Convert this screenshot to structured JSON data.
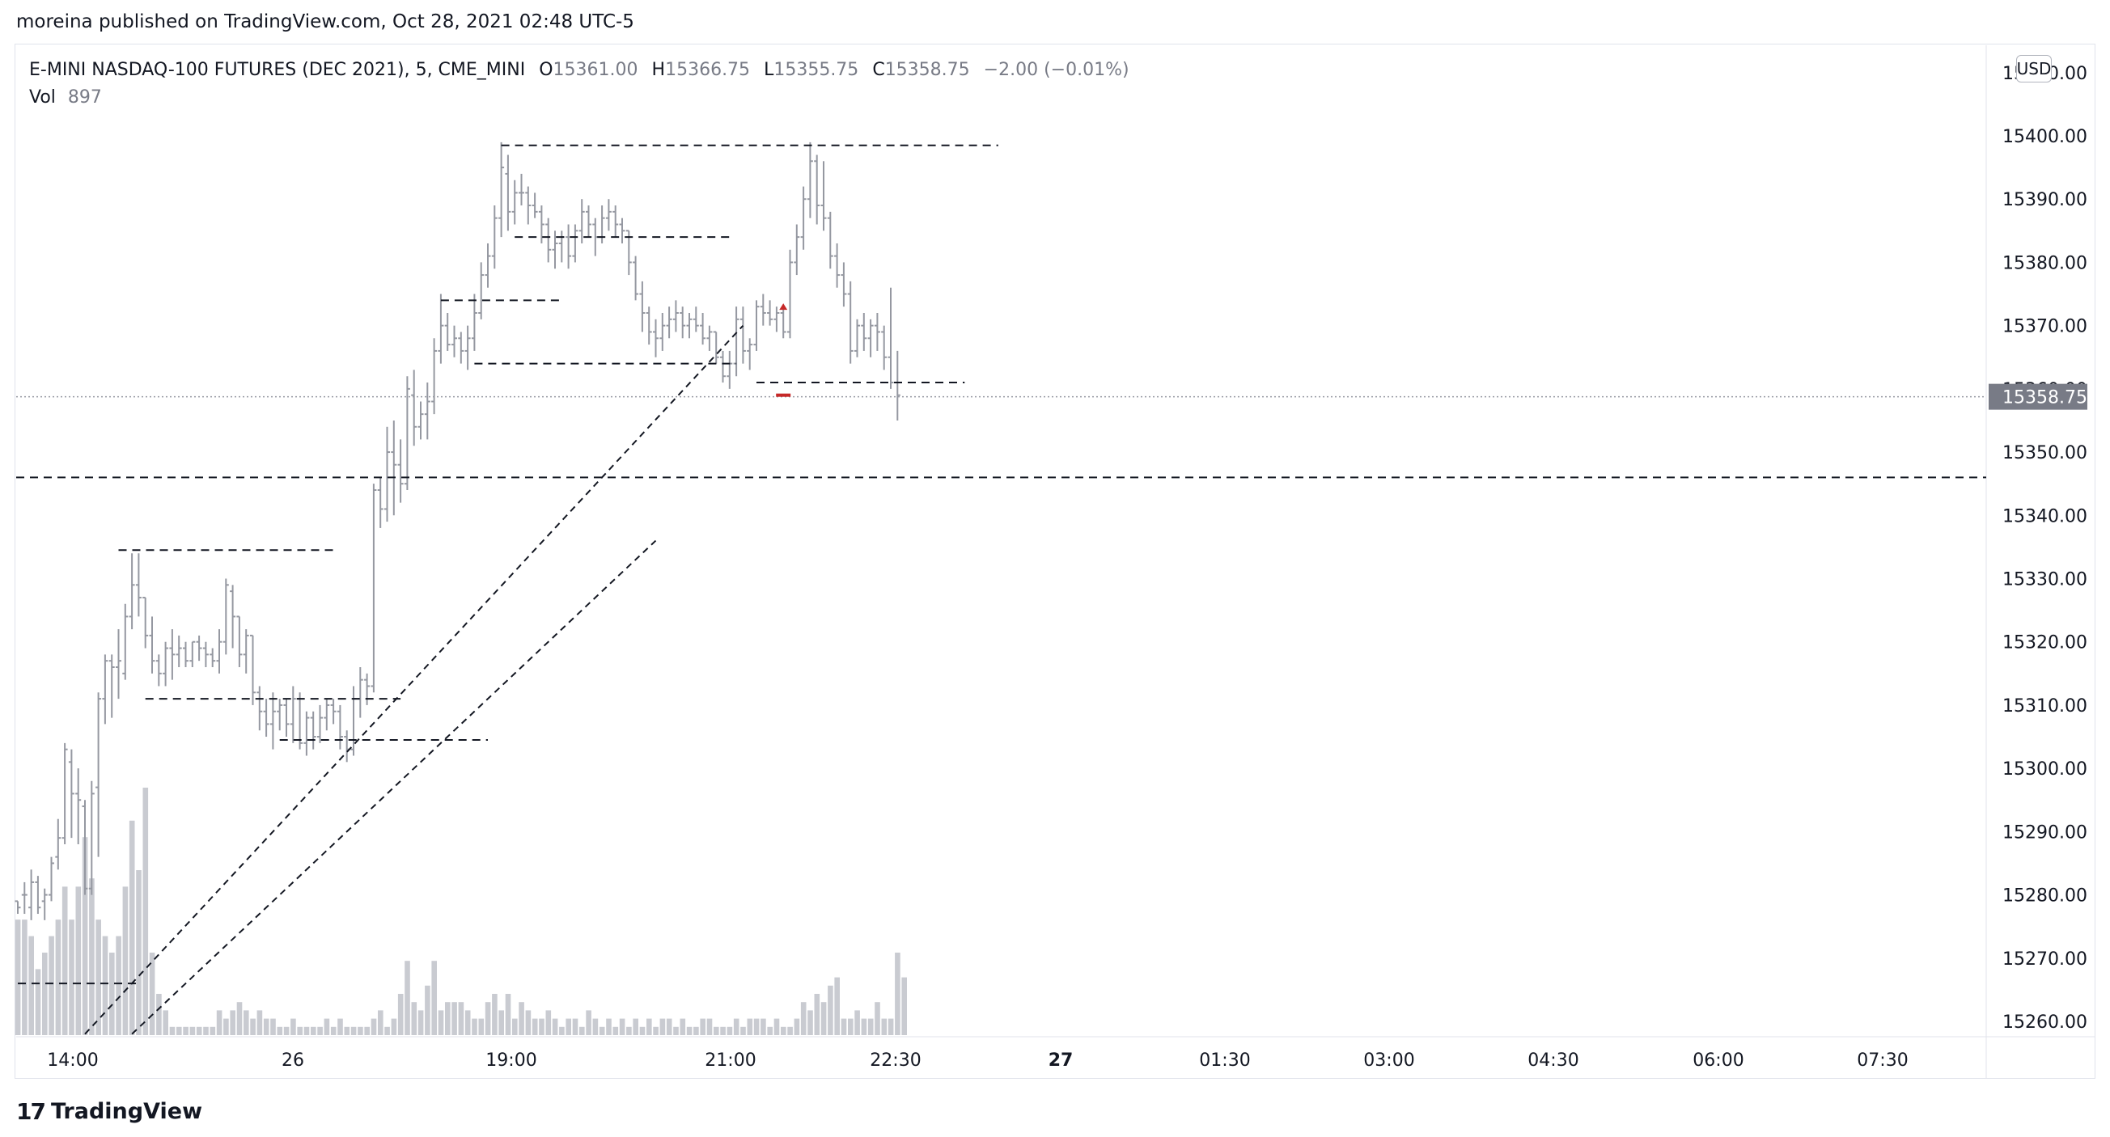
{
  "header": {
    "published_by": "moreina published on TradingView.com, Oct 28, 2021 02:48 UTC-5"
  },
  "legend": {
    "symbol": "E-MINI NASDAQ-100 FUTURES (DEC 2021), 5, CME_MINI",
    "o_label": "O",
    "o_value": "15361.00",
    "h_label": "H",
    "h_value": "15366.75",
    "l_label": "L",
    "l_value": "15355.75",
    "c_label": "C",
    "c_value": "15358.75",
    "change": "−2.00 (−0.01%)",
    "vol_label": "Vol",
    "vol_value": "897"
  },
  "currency": "USD",
  "footer": {
    "brand": "TradingView",
    "logo_glyph": "17"
  },
  "colors": {
    "bar": "#9598a1",
    "volume": "#c9cbd1",
    "line": "#131722",
    "last_price_bg": "#787b86",
    "last_price_text": "#ffffff",
    "marker_red": "#c62828"
  },
  "chart_data": {
    "type": "ohlc",
    "title": "E-MINI NASDAQ-100 FUTURES (DEC 2021), 5, CME_MINI",
    "timeframe": "5",
    "y_ticks": [
      "15260.00",
      "15270.00",
      "15280.00",
      "15290.00",
      "15300.00",
      "15310.00",
      "15320.00",
      "15330.00",
      "15340.00",
      "15350.00",
      "15360.00",
      "15370.00",
      "15380.00",
      "15390.00",
      "15400.00",
      "15410.00"
    ],
    "ylim": [
      15258,
      15414
    ],
    "x_ticks": [
      "14:00",
      "26",
      "19:00",
      "21:00",
      "22:30",
      "27",
      "01:30",
      "03:00",
      "04:30",
      "06:00",
      "07:30"
    ],
    "x_tick_bold": [
      false,
      false,
      false,
      false,
      false,
      true,
      false,
      false,
      false,
      false,
      false
    ],
    "last_price": "15358.75",
    "last_price_value": 15358.75,
    "ohlc": [
      [
        15279,
        15279,
        15277,
        15278
      ],
      [
        15280,
        15282,
        15277,
        15280
      ],
      [
        15278,
        15284,
        15276,
        15282
      ],
      [
        15282,
        15283,
        15277,
        15278
      ],
      [
        15279,
        15281,
        15276,
        15280
      ],
      [
        15280,
        15286,
        15279,
        15285
      ],
      [
        15286,
        15292,
        15284,
        15289
      ],
      [
        15289,
        15304,
        15288,
        15303
      ],
      [
        15301,
        15303,
        15289,
        15296
      ],
      [
        15296,
        15300,
        15288,
        15295
      ],
      [
        15294,
        15295,
        15280,
        15281
      ],
      [
        15281,
        15298,
        15280,
        15296
      ],
      [
        15297,
        15312,
        15286,
        15311
      ],
      [
        15311,
        15318,
        15307,
        15317
      ],
      [
        15317,
        15318,
        15308,
        15316
      ],
      [
        15316,
        15322,
        15311,
        15317
      ],
      [
        15315,
        15326,
        15314,
        15324
      ],
      [
        15324,
        15334,
        15322,
        15329
      ],
      [
        15329,
        15334,
        15324,
        15327
      ],
      [
        15327,
        15327,
        15319,
        15321
      ],
      [
        15321,
        15324,
        15315,
        15317
      ],
      [
        15317,
        15318,
        15313,
        15315
      ],
      [
        15315,
        15320,
        15313,
        15319
      ],
      [
        15319,
        15322,
        15314,
        15318
      ],
      [
        15318,
        15321,
        15316,
        15319
      ],
      [
        15319,
        15320,
        15316,
        15317
      ],
      [
        15317,
        15320,
        15316,
        15320
      ],
      [
        15320,
        15321,
        15317,
        15319
      ],
      [
        15319,
        15320,
        15316,
        15318
      ],
      [
        15318,
        15319,
        15316,
        15317
      ],
      [
        15317,
        15322,
        15315,
        15320
      ],
      [
        15320,
        15330,
        15318,
        15329
      ],
      [
        15328,
        15329,
        15319,
        15324
      ],
      [
        15324,
        15324,
        15316,
        15318
      ],
      [
        15318,
        15322,
        15315,
        15321
      ],
      [
        15321,
        15321,
        15310,
        15312
      ],
      [
        15312,
        15313,
        15306,
        15309
      ],
      [
        15309,
        15311,
        15305,
        15307
      ],
      [
        15307,
        15312,
        15303,
        15309
      ],
      [
        15309,
        15311,
        15306,
        15310
      ],
      [
        15310,
        15311,
        15305,
        15307
      ],
      [
        15307,
        15313,
        15304,
        15311
      ],
      [
        15311,
        15312,
        15303,
        15304
      ],
      [
        15304,
        15309,
        15302,
        15308
      ],
      [
        15308,
        15309,
        15303,
        15305
      ],
      [
        15305,
        15310,
        15304,
        15308
      ],
      [
        15308,
        15311,
        15306,
        15310
      ],
      [
        15310,
        15311,
        15307,
        15309
      ],
      [
        15309,
        15310,
        15303,
        15305
      ],
      [
        15305,
        15306,
        15301,
        15303
      ],
      [
        15303,
        15313,
        15302,
        15311
      ],
      [
        15311,
        15316,
        15308,
        15314
      ],
      [
        15314,
        15315,
        15310,
        15313
      ],
      [
        15313,
        15345,
        15312,
        15344
      ],
      [
        15344,
        15346,
        15338,
        15341
      ],
      [
        15341,
        15354,
        15339,
        15350
      ],
      [
        15350,
        15355,
        15340,
        15348
      ],
      [
        15348,
        15352,
        15342,
        15345
      ],
      [
        15345,
        15362,
        15344,
        15360
      ],
      [
        15359,
        15363,
        15351,
        15354
      ],
      [
        15354,
        15358,
        15352,
        15356
      ],
      [
        15356,
        15361,
        15352,
        15358
      ],
      [
        15358,
        15368,
        15356,
        15366
      ],
      [
        15366,
        15375,
        15364,
        15370
      ],
      [
        15370,
        15372,
        15366,
        15367
      ],
      [
        15367,
        15370,
        15365,
        15368
      ],
      [
        15368,
        15369,
        15364,
        15366
      ],
      [
        15366,
        15370,
        15363,
        15368
      ],
      [
        15368,
        15375,
        15366,
        15372
      ],
      [
        15372,
        15380,
        15371,
        15378
      ],
      [
        15378,
        15383,
        15376,
        15381
      ],
      [
        15381,
        15389,
        15379,
        15387
      ],
      [
        15387,
        15399,
        15384,
        15395
      ],
      [
        15394,
        15397,
        15385,
        15388
      ],
      [
        15388,
        15393,
        15386,
        15391
      ],
      [
        15391,
        15394,
        15389,
        15391
      ],
      [
        15391,
        15392,
        15386,
        15389
      ],
      [
        15389,
        15391,
        15387,
        15388
      ],
      [
        15388,
        15389,
        15383,
        15386
      ],
      [
        15386,
        15387,
        15380,
        15382
      ],
      [
        15382,
        15385,
        15379,
        15383
      ],
      [
        15383,
        15385,
        15380,
        15384
      ],
      [
        15384,
        15386,
        15379,
        15381
      ],
      [
        15381,
        15386,
        15380,
        15385
      ],
      [
        15385,
        15390,
        15383,
        15388
      ],
      [
        15388,
        15389,
        15384,
        15386
      ],
      [
        15386,
        15387,
        15381,
        15384
      ],
      [
        15384,
        15389,
        15383,
        15387
      ],
      [
        15387,
        15390,
        15385,
        15388
      ],
      [
        15388,
        15389,
        15384,
        15386
      ],
      [
        15386,
        15387,
        15383,
        15385
      ],
      [
        15385,
        15385,
        15378,
        15380
      ],
      [
        15380,
        15381,
        15374,
        15375
      ],
      [
        15375,
        15377,
        15369,
        15372
      ],
      [
        15372,
        15373,
        15367,
        15369
      ],
      [
        15369,
        15371,
        15365,
        15368
      ],
      [
        15368,
        15372,
        15366,
        15370
      ],
      [
        15370,
        15373,
        15368,
        15371
      ],
      [
        15371,
        15374,
        15369,
        15372
      ],
      [
        15372,
        15373,
        15368,
        15370
      ],
      [
        15370,
        15372,
        15368,
        15371
      ],
      [
        15371,
        15373,
        15369,
        15370
      ],
      [
        15370,
        15372,
        15367,
        15368
      ],
      [
        15368,
        15370,
        15366,
        15369
      ],
      [
        15369,
        15369,
        15364,
        15365
      ],
      [
        15365,
        15366,
        15361,
        15362
      ],
      [
        15362,
        15366,
        15360,
        15364
      ],
      [
        15364,
        15373,
        15362,
        15371
      ],
      [
        15371,
        15373,
        15364,
        15366
      ],
      [
        15366,
        15368,
        15363,
        15367
      ],
      [
        15367,
        15374,
        15366,
        15373
      ],
      [
        15373,
        15375,
        15370,
        15372
      ],
      [
        15372,
        15374,
        15370,
        15371
      ],
      [
        15371,
        15373,
        15369,
        15372
      ],
      [
        15372,
        15373,
        15368,
        15369
      ],
      [
        15369,
        15382,
        15368,
        15380
      ],
      [
        15380,
        15386,
        15378,
        15384
      ],
      [
        15384,
        15392,
        15382,
        15390
      ],
      [
        15390,
        15399,
        15387,
        15396
      ],
      [
        15396,
        15397,
        15386,
        15389
      ],
      [
        15389,
        15396,
        15385,
        15387
      ],
      [
        15387,
        15388,
        15379,
        15381
      ],
      [
        15381,
        15383,
        15376,
        15378
      ],
      [
        15378,
        15380,
        15373,
        15375
      ],
      [
        15375,
        15377,
        15364,
        15366
      ],
      [
        15366,
        15371,
        15365,
        15370
      ],
      [
        15370,
        15372,
        15366,
        15368
      ],
      [
        15368,
        15371,
        15365,
        15370
      ],
      [
        15370,
        15372,
        15366,
        15369
      ],
      [
        15369,
        15370,
        15363,
        15365
      ],
      [
        15365,
        15376,
        15360,
        15361
      ],
      [
        15361,
        15366,
        15355,
        15359
      ]
    ],
    "volume": [
      14,
      14,
      12,
      8,
      10,
      12,
      14,
      18,
      14,
      18,
      24,
      19,
      14,
      12,
      10,
      12,
      18,
      26,
      20,
      30,
      10,
      5,
      3,
      1,
      1,
      1,
      1,
      1,
      1,
      1,
      3,
      2,
      3,
      4,
      3,
      2,
      3,
      2,
      2,
      1,
      1,
      2,
      1,
      1,
      1,
      1,
      2,
      1,
      2,
      1,
      1,
      1,
      1,
      2,
      3,
      1,
      2,
      5,
      9,
      4,
      3,
      6,
      9,
      3,
      4,
      4,
      4,
      3,
      2,
      2,
      4,
      5,
      3,
      5,
      2,
      4,
      3,
      2,
      2,
      3,
      2,
      1,
      2,
      2,
      1,
      3,
      2,
      1,
      2,
      1,
      2,
      1,
      2,
      1,
      2,
      1,
      2,
      2,
      1,
      2,
      1,
      1,
      2,
      2,
      1,
      1,
      1,
      2,
      1,
      2,
      2,
      2,
      1,
      2,
      1,
      1,
      2,
      4,
      3,
      5,
      4,
      6,
      7,
      2,
      2,
      3,
      2,
      2,
      4,
      2,
      2,
      10,
      7
    ],
    "volume_scale_max": 30,
    "time_scale": {
      "first_slot": 0,
      "slots_per_day_label": 12
    },
    "horizontal_levels": [
      15346,
      15398.5
    ],
    "drawn_segments": [
      {
        "y": 15398.5,
        "from_bar": 72,
        "to_bar": 146
      },
      {
        "y": 15384,
        "from_bar": 74,
        "to_bar": 106
      },
      {
        "y": 15374,
        "from_bar": 63,
        "to_bar": 81
      },
      {
        "y": 15364,
        "from_bar": 68,
        "to_bar": 107
      },
      {
        "y": 15361,
        "from_bar": 110,
        "to_bar": 141
      },
      {
        "y": 15334.5,
        "from_bar": 15,
        "to_bar": 47
      },
      {
        "y": 15311,
        "from_bar": 19,
        "to_bar": 57
      },
      {
        "y": 15304.5,
        "from_bar": 39,
        "to_bar": 70
      },
      {
        "y": 15266,
        "from_bar": 0,
        "to_bar": 18
      }
    ],
    "trend_lines": [
      {
        "from": [
          10,
          15258
        ],
        "to": [
          108,
          15370
        ]
      },
      {
        "from": [
          17,
          15258
        ],
        "to": [
          95,
          15336
        ]
      }
    ],
    "markers": [
      {
        "type": "arrow-up",
        "bar": 114,
        "price": 15373
      },
      {
        "type": "dash",
        "bar": 114,
        "price": 15359
      }
    ]
  }
}
